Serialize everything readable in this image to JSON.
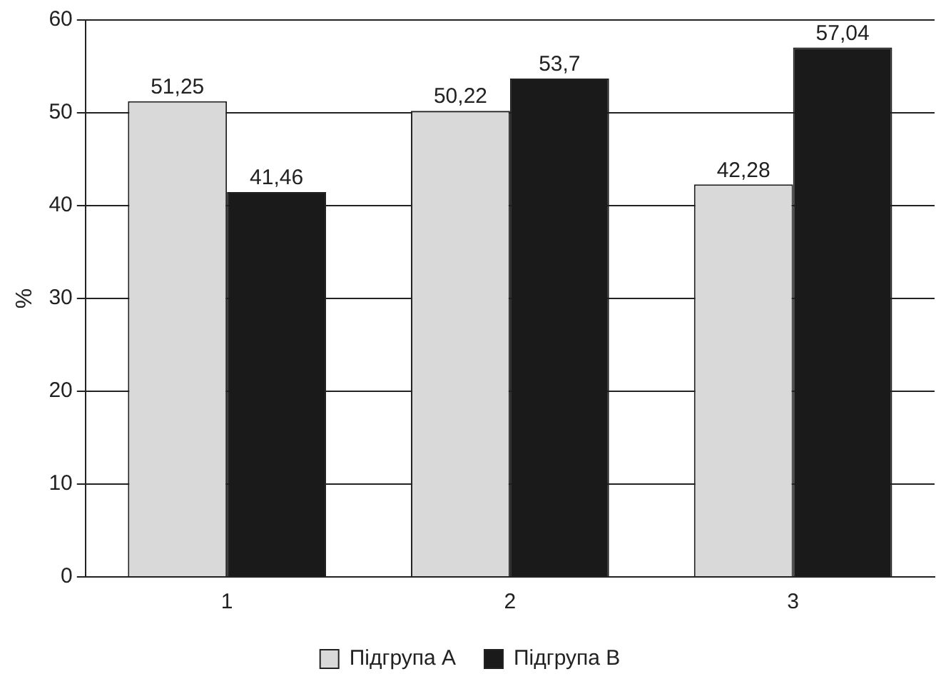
{
  "chart_data": {
    "type": "bar",
    "ylabel": "%",
    "categories": [
      "1",
      "2",
      "3"
    ],
    "series": [
      {
        "name": "Підгрупа A",
        "color": "#d9d9d9",
        "values": [
          51.25,
          50.22,
          42.28
        ],
        "value_labels": [
          "51,25",
          "50,22",
          "42,28"
        ]
      },
      {
        "name": "Підгрупа B",
        "color": "#1a1a1a",
        "values": [
          41.46,
          53.7,
          57.04
        ],
        "value_labels": [
          "41,46",
          "53,7",
          "57,04"
        ]
      }
    ],
    "ylim": [
      0,
      60
    ],
    "yticks": [
      0,
      10,
      20,
      30,
      40,
      50,
      60
    ],
    "grid": "y",
    "legend": "bottom"
  }
}
